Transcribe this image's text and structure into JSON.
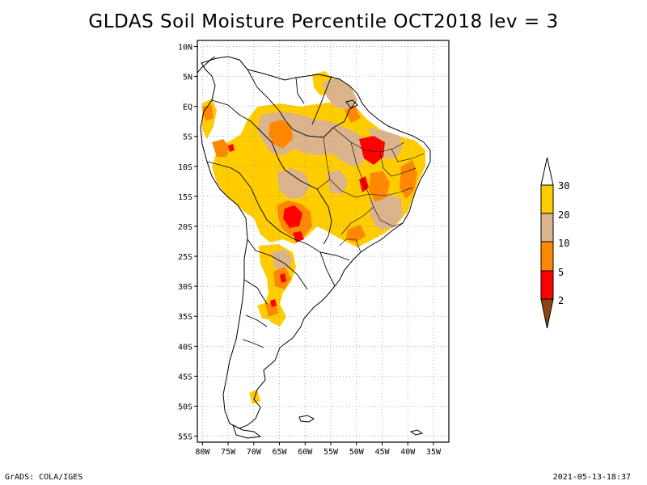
{
  "title": "GLDAS Soil Moisture Percentile OCT2018 lev = 3",
  "footer": {
    "left": "GrADS: COLA/IGES",
    "right": "2021-05-13-18:37"
  },
  "map": {
    "lon_range": [
      -81,
      -32
    ],
    "lat_range": [
      -56,
      11
    ],
    "lat_ticks": [
      "10N",
      "5N",
      "EQ",
      "5S",
      "10S",
      "15S",
      "20S",
      "25S",
      "30S",
      "35S",
      "40S",
      "45S",
      "50S",
      "55S"
    ],
    "lon_ticks": [
      "80W",
      "75W",
      "70W",
      "65W",
      "60W",
      "55W",
      "50W",
      "45W",
      "40W",
      "35W"
    ],
    "grid": true
  },
  "legend": {
    "labels": [
      "30",
      "20",
      "10",
      "5",
      "2"
    ],
    "colors": {
      "above30": "#ffffff",
      "20-30": "#ffcc00",
      "10-20": "#dcb48c",
      "5-10": "#ff8800",
      "2-5": "#ff0000",
      "below2": "#8b4513"
    }
  },
  "colors": {
    "p20_30": "#ffcc00",
    "p10_20": "#dcb48c",
    "p5_10": "#ff8800",
    "p2_5": "#ff0000"
  }
}
